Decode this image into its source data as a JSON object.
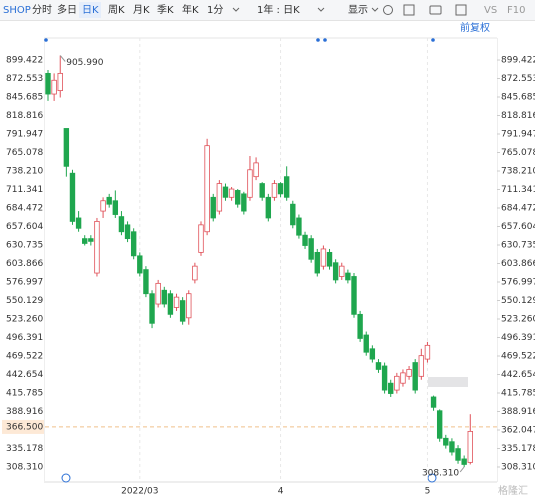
{
  "toolbar": {
    "symbol": "SHOP",
    "tabs": [
      "分时",
      "多日",
      "日K",
      "周K",
      "月K",
      "季K",
      "年K",
      "1分"
    ],
    "active_tab": 2,
    "period": "1年 : 日K",
    "display": "显示",
    "vs": "VS",
    "f10": "F10",
    "adjust": "前复权"
  },
  "watermark": "格隆汇",
  "chart_data": {
    "type": "candlestick",
    "open": [
      880,
      850,
      855,
      800,
      735,
      670,
      640,
      640,
      590,
      680,
      700,
      695,
      672,
      660,
      650,
      615,
      595,
      560,
      545,
      565,
      560,
      540,
      550,
      525,
      580,
      620,
      650,
      700,
      680,
      715,
      700,
      710,
      705,
      700,
      730,
      720,
      700,
      700,
      720,
      730,
      690,
      670,
      645,
      640,
      620,
      600,
      620,
      605,
      585,
      590,
      585,
      530,
      500,
      480,
      460,
      455,
      430,
      420,
      430,
      440,
      460,
      440,
      465,
      410,
      390,
      350,
      345,
      335,
      320,
      315
    ],
    "close": [
      850,
      870,
      880,
      745,
      665,
      655,
      633,
      636,
      665,
      695,
      690,
      675,
      650,
      640,
      615,
      590,
      560,
      517,
      575,
      545,
      530,
      555,
      520,
      560,
      600,
      660,
      775,
      670,
      720,
      700,
      712,
      690,
      680,
      740,
      750,
      700,
      670,
      720,
      705,
      700,
      660,
      645,
      630,
      610,
      590,
      625,
      600,
      580,
      600,
      580,
      530,
      495,
      475,
      465,
      450,
      420,
      415,
      440,
      445,
      450,
      420,
      470,
      485,
      395,
      350,
      340,
      330,
      318,
      312,
      360
    ],
    "high": [
      885,
      880,
      905.99,
      800,
      740,
      680,
      645,
      645,
      670,
      700,
      705,
      710,
      680,
      665,
      655,
      620,
      600,
      565,
      580,
      570,
      565,
      560,
      555,
      565,
      605,
      665,
      785,
      705,
      725,
      720,
      715,
      712,
      708,
      760,
      758,
      722,
      705,
      725,
      722,
      745,
      695,
      675,
      650,
      645,
      625,
      630,
      625,
      610,
      605,
      595,
      590,
      535,
      505,
      485,
      465,
      460,
      435,
      445,
      450,
      455,
      465,
      480,
      490,
      412,
      392,
      355,
      350,
      340,
      325,
      385
    ],
    "low": [
      840,
      840,
      845,
      730,
      660,
      650,
      630,
      630,
      585,
      670,
      685,
      670,
      645,
      635,
      610,
      585,
      555,
      510,
      540,
      540,
      525,
      535,
      515,
      515,
      575,
      615,
      645,
      665,
      675,
      695,
      695,
      685,
      675,
      695,
      725,
      695,
      665,
      695,
      700,
      695,
      655,
      640,
      625,
      605,
      585,
      595,
      595,
      575,
      580,
      575,
      525,
      490,
      470,
      460,
      445,
      415,
      410,
      415,
      425,
      435,
      415,
      435,
      460,
      390,
      345,
      335,
      325,
      313,
      308.31,
      312
    ],
    "up_color": "#e0525a",
    "down_color": "#1fa64e",
    "ylim": [
      286.5,
      931.4
    ],
    "yticks": [
      899.422,
      872.553,
      845.685,
      818.816,
      791.947,
      765.078,
      {
        "value": 738.21,
        "label": "738.210"
      },
      711.341,
      684.472,
      657.604,
      630.735,
      603.866,
      576.997,
      550.129,
      {
        "value": 523.26,
        "label": "523.260"
      },
      496.391,
      469.522,
      442.654,
      415.785,
      388.916,
      362.047,
      335.178,
      {
        "value": 308.31,
        "label": "308.310"
      }
    ],
    "xticks": [
      {
        "value": 15,
        "label": "2022/03"
      },
      {
        "value": 38,
        "label": "4"
      },
      {
        "value": 62,
        "label": "5"
      }
    ],
    "current_price": {
      "value": 366.5,
      "label": "366.500"
    },
    "annotations": [
      {
        "value": 905.99,
        "label": "905.990"
      },
      {
        "value": 308.31,
        "label": "308.310"
      }
    ]
  }
}
